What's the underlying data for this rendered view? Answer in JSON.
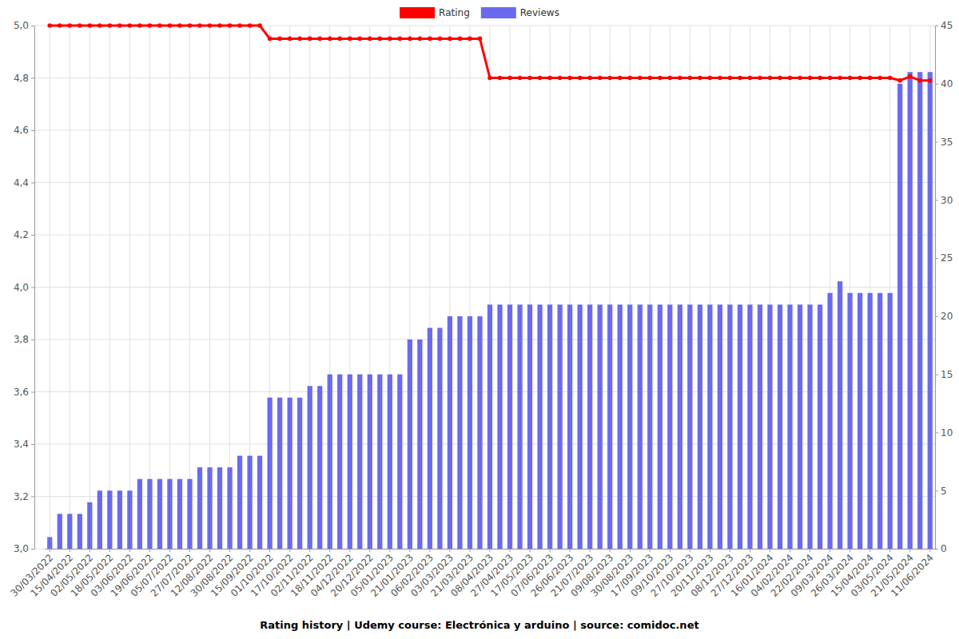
{
  "chart_data": {
    "type": "combo",
    "title": "Rating history | Udemy course: Electrónica y arduino | source: comidoc.net",
    "categories": [
      "30/03/2022",
      null,
      "15/04/2022",
      null,
      "02/05/2022",
      null,
      "18/05/2022",
      null,
      "03/06/2022",
      null,
      "19/06/2022",
      null,
      "05/07/2022",
      null,
      "27/07/2022",
      null,
      "12/08/2022",
      null,
      "30/08/2022",
      null,
      "15/09/2022",
      null,
      "01/10/2022",
      null,
      "17/10/2022",
      null,
      "02/11/2022",
      null,
      "18/11/2022",
      null,
      "04/12/2022",
      null,
      "20/12/2022",
      null,
      "05/01/2023",
      null,
      "21/01/2023",
      null,
      "06/02/2023",
      null,
      "03/03/2023",
      null,
      "21/03/2023",
      null,
      "08/04/2023",
      null,
      "27/04/2023",
      null,
      "17/05/2023",
      null,
      "07/06/2023",
      null,
      "26/06/2023",
      null,
      "21/07/2023",
      null,
      "09/08/2023",
      null,
      "30/08/2023",
      null,
      "17/09/2023",
      null,
      "09/10/2023",
      null,
      "27/10/2023",
      null,
      "20/11/2023",
      null,
      "08/12/2023",
      null,
      "27/12/2023",
      null,
      "16/01/2024",
      null,
      "04/02/2024",
      null,
      "22/02/2024",
      null,
      "09/03/2024",
      null,
      "26/03/2024",
      null,
      "15/04/2024",
      null,
      "03/05/2024",
      null,
      "21/05/2024",
      null,
      "11/06/2024"
    ],
    "series": [
      {
        "name": "Rating",
        "type": "line",
        "color": "#ff0000",
        "marker": "circle",
        "values": [
          5,
          5,
          5,
          5,
          5,
          5,
          5,
          5,
          5,
          5,
          5,
          5,
          5,
          5,
          5,
          5,
          5,
          5,
          5,
          5,
          5,
          5,
          4.95,
          4.95,
          4.95,
          4.95,
          4.95,
          4.95,
          4.95,
          4.95,
          4.95,
          4.95,
          4.95,
          4.95,
          4.95,
          4.95,
          4.95,
          4.95,
          4.95,
          4.95,
          4.95,
          4.95,
          4.95,
          4.95,
          4.8,
          4.8,
          4.8,
          4.8,
          4.8,
          4.8,
          4.8,
          4.8,
          4.8,
          4.8,
          4.8,
          4.8,
          4.8,
          4.8,
          4.8,
          4.8,
          4.8,
          4.8,
          4.8,
          4.8,
          4.8,
          4.8,
          4.8,
          4.8,
          4.8,
          4.8,
          4.8,
          4.8,
          4.8,
          4.8,
          4.8,
          4.8,
          4.8,
          4.8,
          4.8,
          4.8,
          4.8,
          4.8,
          4.8,
          4.8,
          4.8,
          4.79,
          4.805,
          4.79,
          4.79
        ]
      },
      {
        "name": "Reviews",
        "type": "bar",
        "color": "#6a6aef",
        "axis": "y2",
        "values": [
          1,
          3,
          3,
          3,
          4,
          5,
          5,
          5,
          5,
          6,
          6,
          6,
          6,
          6,
          6,
          7,
          7,
          7,
          7,
          8,
          8,
          8,
          13,
          13,
          13,
          13,
          14,
          14,
          15,
          15,
          15,
          15,
          15,
          15,
          15,
          15,
          18,
          18,
          19,
          19,
          20,
          20,
          20,
          20,
          21,
          21,
          21,
          21,
          21,
          21,
          21,
          21,
          21,
          21,
          21,
          21,
          21,
          21,
          21,
          21,
          21,
          21,
          21,
          21,
          21,
          21,
          21,
          21,
          21,
          21,
          21,
          21,
          21,
          21,
          21,
          21,
          21,
          21,
          22,
          23,
          22,
          22,
          22,
          22,
          22,
          40,
          41,
          41,
          41
        ]
      }
    ],
    "ylim": [
      3,
      5
    ],
    "yticks": [
      {
        "value": 3,
        "label": "3,0"
      },
      {
        "value": 3.2,
        "label": "3,2"
      },
      {
        "value": 3.4,
        "label": "3,4"
      },
      {
        "value": 3.6,
        "label": "3,6"
      },
      {
        "value": 3.8,
        "label": "3,8"
      },
      {
        "value": 4,
        "label": "4,0"
      },
      {
        "value": 4.2,
        "label": "4,2"
      },
      {
        "value": 4.4,
        "label": "4,4"
      },
      {
        "value": 4.6,
        "label": "4,6"
      },
      {
        "value": 4.8,
        "label": "4,8"
      },
      {
        "value": 5,
        "label": "5,0"
      }
    ],
    "y2lim": [
      0,
      45
    ],
    "y2ticks": [
      0,
      5,
      10,
      15,
      20,
      25,
      30,
      35,
      40,
      45
    ],
    "grid": true,
    "legend": "top"
  }
}
